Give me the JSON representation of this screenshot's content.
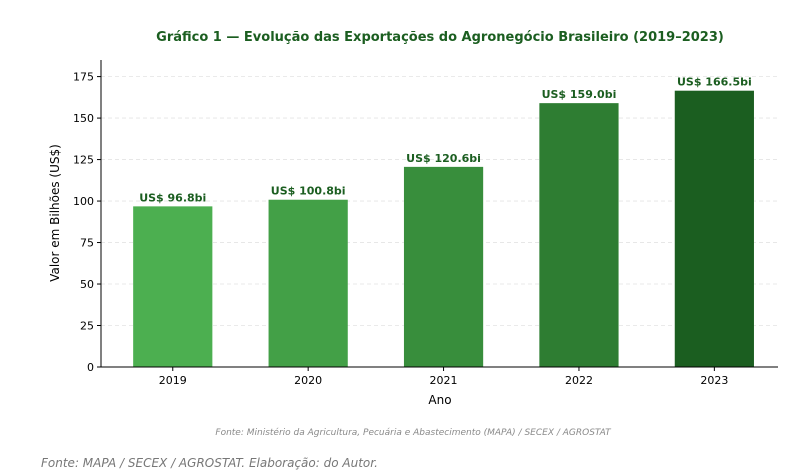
{
  "chart_data": {
    "type": "bar",
    "title": "Gráfico 1 — Evolução das Exportações do Agronegócio Brasileiro (2019–2023)",
    "xlabel": "Ano",
    "ylabel": "Valor em Bilhões (US$)",
    "categories": [
      "2019",
      "2020",
      "2021",
      "2022",
      "2023"
    ],
    "values": [
      96.8,
      100.8,
      120.6,
      159.0,
      166.5
    ],
    "data_labels": [
      "US$ 96.8bi",
      "US$ 100.8bi",
      "US$ 120.6bi",
      "US$ 159.0bi",
      "US$ 166.5bi"
    ],
    "ylim": [
      0,
      185
    ],
    "yticks": [
      0,
      25,
      50,
      75,
      100,
      125,
      150,
      175
    ],
    "grid": "horizontal dashed",
    "bar_colors": [
      "#4caf50",
      "#43a047",
      "#388e3c",
      "#2e7d32",
      "#1b5e20"
    ],
    "title_color": "#1b5e20",
    "label_color": "#1b5e20",
    "source_note": "Fonte: Ministério da Agricultura, Pecuária e Abastecimento (MAPA) / SECEX / AGROSTAT"
  },
  "footer": {
    "source": "Fonte: MAPA / SECEX / AGROSTAT. Elaboração: do Autor."
  }
}
